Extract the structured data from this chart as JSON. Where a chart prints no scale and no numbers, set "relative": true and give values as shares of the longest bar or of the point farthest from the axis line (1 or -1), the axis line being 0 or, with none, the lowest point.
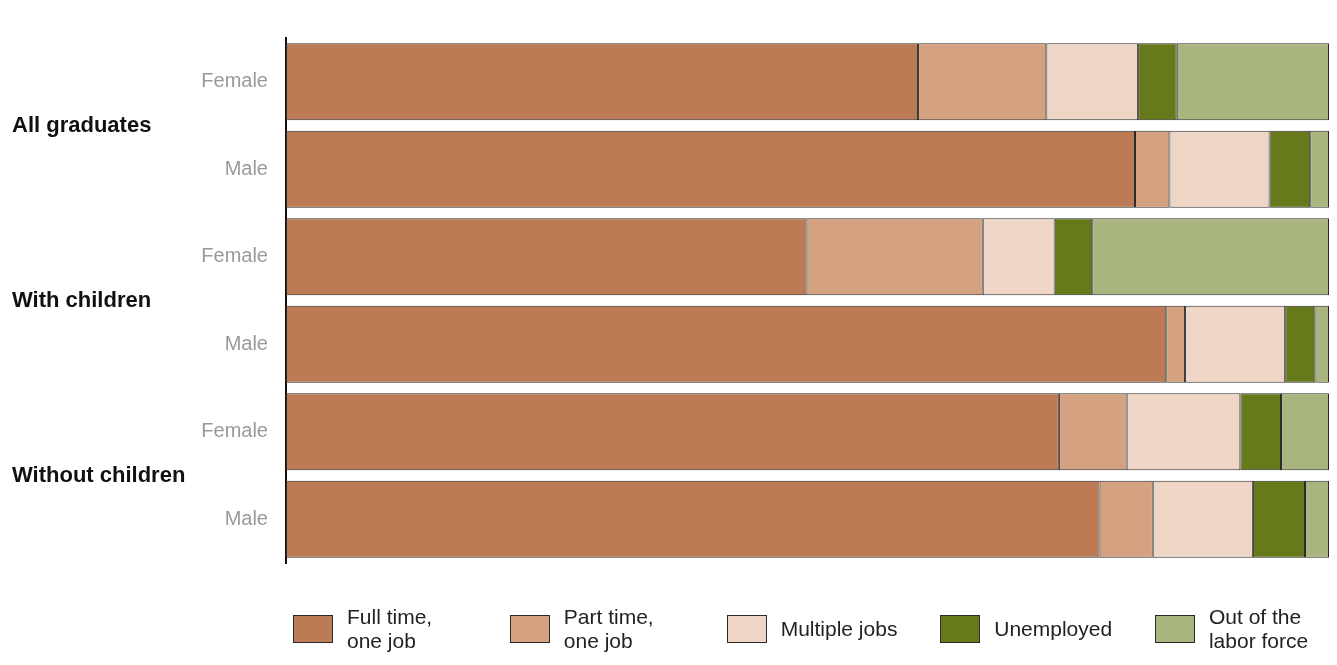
{
  "chart_data": {
    "type": "bar",
    "orientation": "horizontal",
    "stacked": true,
    "relative": true,
    "legend": "bottom",
    "categories": [
      "Female",
      "Male",
      "Female",
      "Male",
      "Female",
      "Male"
    ],
    "annotations": [
      "All graduates",
      "With children",
      "Without children"
    ],
    "series": [
      {
        "name": "Full time, one job",
        "color": "#bc7b55",
        "values": [
          0.606,
          0.814,
          0.499,
          0.844,
          0.741,
          0.78
        ]
      },
      {
        "name": "Part time, one job",
        "color": "#d4a281",
        "values": [
          0.123,
          0.033,
          0.169,
          0.018,
          0.065,
          0.051
        ]
      },
      {
        "name": "Multiple jobs",
        "color": "#eed5c6",
        "values": [
          0.088,
          0.096,
          0.069,
          0.096,
          0.109,
          0.096
        ]
      },
      {
        "name": "Unemployed",
        "color": "#667a1b",
        "values": [
          0.037,
          0.039,
          0.036,
          0.029,
          0.039,
          0.05
        ]
      },
      {
        "name": "Out of the labor force",
        "color": "#a9b57e",
        "values": [
          0.146,
          0.018,
          0.227,
          0.013,
          0.046,
          0.023
        ]
      }
    ]
  }
}
